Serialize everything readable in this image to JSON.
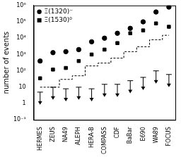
{
  "chart_data": {
    "type": "line",
    "y_label": "number of events",
    "categories": [
      "HERMES",
      "ZEUS",
      "NA49",
      "ALEPH",
      "HERA-B",
      "COMPASS",
      "CDF",
      "BaBar",
      "E690",
      "WA89",
      "FOCUS"
    ],
    "series": [
      {
        "name": "Ξ(1320)⁻",
        "type": "scatter",
        "marker": "circle",
        "color": "#000000",
        "values": [
          400,
          1300,
          1500,
          2000,
          6000,
          10000,
          20000,
          40000,
          100000,
          400000,
          800000
        ]
      },
      {
        "name": "Ξ(1530)⁰",
        "type": "scatter",
        "marker": "square",
        "color": "#000000",
        "values": [
          35,
          120,
          150,
          400,
          1000,
          2000,
          5000,
          20000,
          30000,
          80000,
          50000
        ]
      },
      {
        "type": "line",
        "line_style": "dashed",
        "color": "#000000",
        "values": [
          10,
          10,
          30,
          50,
          200,
          300,
          600,
          1500,
          3000,
          8000,
          15000
        ]
      },
      {
        "type": "scatter",
        "marker": "arrow",
        "color": "#000000",
        "values": [
          5,
          10,
          8,
          10,
          8,
          15,
          15,
          25,
          40,
          100,
          60
        ]
      }
    ],
    "ylim": [
      0.1,
      1000000
    ],
    "yticks": [
      {
        "value": 0.1,
        "label": "10⁻¹"
      },
      1,
      10,
      {
        "value": 100,
        "label": "10²"
      },
      {
        "value": 1000,
        "label": "10³"
      },
      {
        "value": 10000,
        "label": "10⁴"
      },
      {
        "value": 100000,
        "label": "10⁵"
      },
      {
        "value": 1000000,
        "label": "10⁶"
      }
    ],
    "log": "y",
    "grid": false,
    "legend": "upper left"
  }
}
